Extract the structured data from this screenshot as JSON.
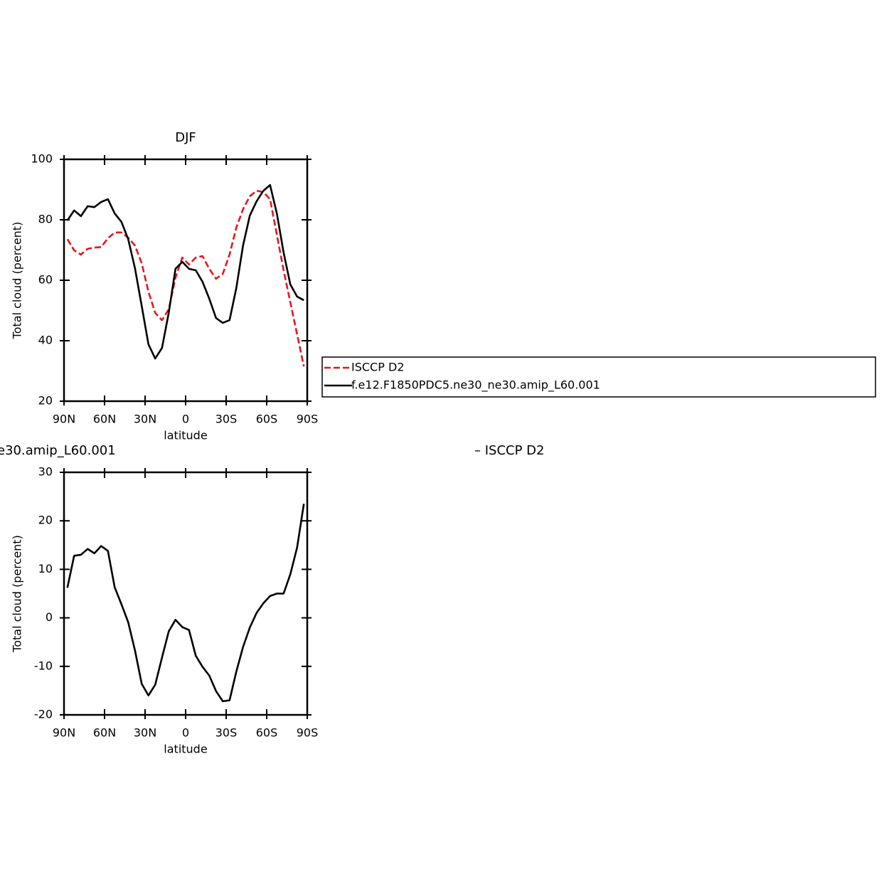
{
  "chart_data": [
    {
      "type": "line",
      "title": "DJF",
      "xlabel": "latitude",
      "ylabel": "Total cloud (percent)",
      "x": [
        87.5,
        82.5,
        77.5,
        72.5,
        67.5,
        62.5,
        57.5,
        52.5,
        47.5,
        42.5,
        37.5,
        32.5,
        27.5,
        22.5,
        17.5,
        12.5,
        7.5,
        2.5,
        -2.5,
        -7.5,
        -12.5,
        -17.5,
        -22.5,
        -27.5,
        -32.5,
        -37.5,
        -42.5,
        -47.5,
        -52.5,
        -57.5,
        -62.5,
        -67.5,
        -72.5,
        -77.5,
        -82.5,
        -87.5
      ],
      "series": [
        {
          "name": "ISCCP D2",
          "color": "#e8151b",
          "dash": true,
          "values": [
            73.6,
            69.9,
            68.5,
            70.4,
            70.8,
            71.0,
            73.9,
            75.8,
            75.8,
            74.1,
            71.5,
            65.6,
            56.2,
            49.2,
            46.8,
            50.4,
            60.9,
            67.5,
            65.2,
            67.5,
            68.0,
            63.8,
            60.5,
            62.1,
            68.5,
            77.4,
            83.5,
            87.8,
            89.6,
            89.2,
            86.8,
            75.1,
            63.3,
            52.7,
            42.1,
            31.5
          ]
        },
        {
          "name": "f.e12.F1850PDC5.ne30_ne30.amip_L60.001",
          "color": "#000000",
          "dash": false,
          "values": [
            79.8,
            83.1,
            81.2,
            84.5,
            84.2,
            85.9,
            86.8,
            82.1,
            79.3,
            73.6,
            64.0,
            51.5,
            38.8,
            34.1,
            37.6,
            49.2,
            63.8,
            66.1,
            63.8,
            63.3,
            59.5,
            53.9,
            47.5,
            45.9,
            46.8,
            57.4,
            71.5,
            81.4,
            86.1,
            89.6,
            91.5,
            82.1,
            69.2,
            58.6,
            54.6,
            53.4
          ]
        }
      ],
      "xlim": [
        90,
        -90
      ],
      "xticks": [
        {
          "value": 90,
          "label": "90N"
        },
        {
          "value": 60,
          "label": "60N"
        },
        {
          "value": 30,
          "label": "30N"
        },
        0,
        {
          "value": -30,
          "label": "30S"
        },
        {
          "value": -60,
          "label": "60S"
        },
        {
          "value": -90,
          "label": "90S"
        }
      ],
      "ylim": [
        20,
        100
      ],
      "yticks": [
        20,
        40,
        60,
        80,
        100
      ],
      "legend": "right"
    },
    {
      "type": "line",
      "title_parts": [
        "e30.amip_L60.001",
        "– ISCCP D2"
      ],
      "xlabel": "latitude",
      "ylabel": "Total cloud (percent)",
      "x": [
        87.5,
        82.5,
        77.5,
        72.5,
        67.5,
        62.5,
        57.5,
        52.5,
        47.5,
        42.5,
        37.5,
        32.5,
        27.5,
        22.5,
        17.5,
        12.5,
        7.5,
        2.5,
        -2.5,
        -7.5,
        -12.5,
        -17.5,
        -22.5,
        -27.5,
        -32.5,
        -37.5,
        -42.5,
        -47.5,
        -52.5,
        -57.5,
        -62.5,
        -67.5,
        -72.5,
        -77.5,
        -82.5,
        -87.5
      ],
      "series": [
        {
          "color": "#000000",
          "dash": false,
          "values": [
            6.2,
            12.8,
            13.0,
            14.2,
            13.3,
            14.8,
            13.8,
            6.3,
            2.8,
            -0.9,
            -6.7,
            -13.6,
            -16.0,
            -13.8,
            -8.2,
            -2.8,
            -0.4,
            -1.9,
            -2.5,
            -7.8,
            -10.1,
            -11.9,
            -15.1,
            -17.2,
            -17.0,
            -11.1,
            -6.0,
            -2.0,
            1.0,
            3.0,
            4.5,
            5.0,
            5.0,
            9.0,
            14.5,
            23.5
          ]
        }
      ],
      "xlim": [
        90,
        -90
      ],
      "xticks": [
        {
          "value": 90,
          "label": "90N"
        },
        {
          "value": 60,
          "label": "60N"
        },
        {
          "value": 30,
          "label": "30N"
        },
        0,
        {
          "value": -30,
          "label": "30S"
        },
        {
          "value": -60,
          "label": "60S"
        },
        {
          "value": -90,
          "label": "90S"
        }
      ],
      "ylim": [
        -20,
        30
      ],
      "yticks": [
        -20,
        -10,
        0,
        10,
        20,
        30
      ]
    }
  ]
}
